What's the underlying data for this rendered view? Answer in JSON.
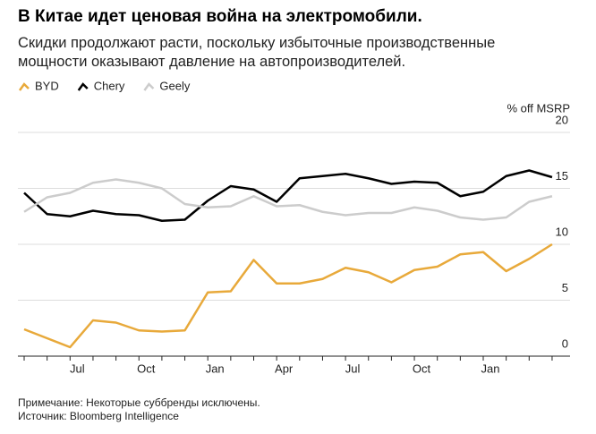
{
  "chart_data": {
    "type": "line",
    "title": "В Китае идет ценовая война на электромобили.",
    "subtitle": "Скидки продолжают расти, поскольку избыточные производственные мощности оказывают давление на автопроизводителей.",
    "y_label": "% off MSRP",
    "categories": [
      null,
      null,
      "Jul",
      null,
      null,
      "Oct",
      null,
      null,
      "Jan",
      null,
      null,
      "Apr",
      null,
      null,
      "Jul",
      null,
      null,
      "Oct",
      null,
      null,
      "Jan",
      null,
      null,
      null
    ],
    "series": [
      {
        "name": "BYD",
        "color": "#e8a93a",
        "values": [
          2.4,
          1.6,
          0.8,
          3.2,
          3.0,
          2.3,
          2.2,
          2.3,
          5.7,
          5.8,
          8.6,
          6.5,
          6.5,
          6.9,
          7.9,
          7.5,
          6.6,
          7.7,
          8.0,
          9.1,
          9.3,
          7.6,
          8.7,
          10.0
        ]
      },
      {
        "name": "Chery",
        "color": "#000000",
        "values": [
          14.6,
          12.7,
          12.5,
          13.0,
          12.7,
          12.6,
          12.1,
          12.2,
          13.9,
          15.2,
          14.9,
          13.8,
          15.9,
          16.1,
          16.3,
          15.9,
          15.4,
          15.6,
          15.5,
          14.3,
          14.7,
          16.1,
          16.6,
          16.0
        ]
      },
      {
        "name": "Geely",
        "color": "#cccccc",
        "values": [
          12.9,
          14.2,
          14.6,
          15.5,
          15.8,
          15.5,
          15.0,
          13.6,
          13.3,
          13.4,
          14.3,
          13.4,
          13.5,
          12.9,
          12.6,
          12.8,
          12.8,
          13.3,
          13.0,
          12.4,
          12.2,
          12.4,
          13.8,
          14.3
        ]
      }
    ],
    "ylim": [
      0,
      20
    ],
    "yticks": [
      0,
      5,
      10,
      15,
      20
    ],
    "grid": true,
    "notes": [
      "Примечание: Некоторые суббренды исключены.",
      "Источник: Bloomberg Intelligence"
    ]
  }
}
